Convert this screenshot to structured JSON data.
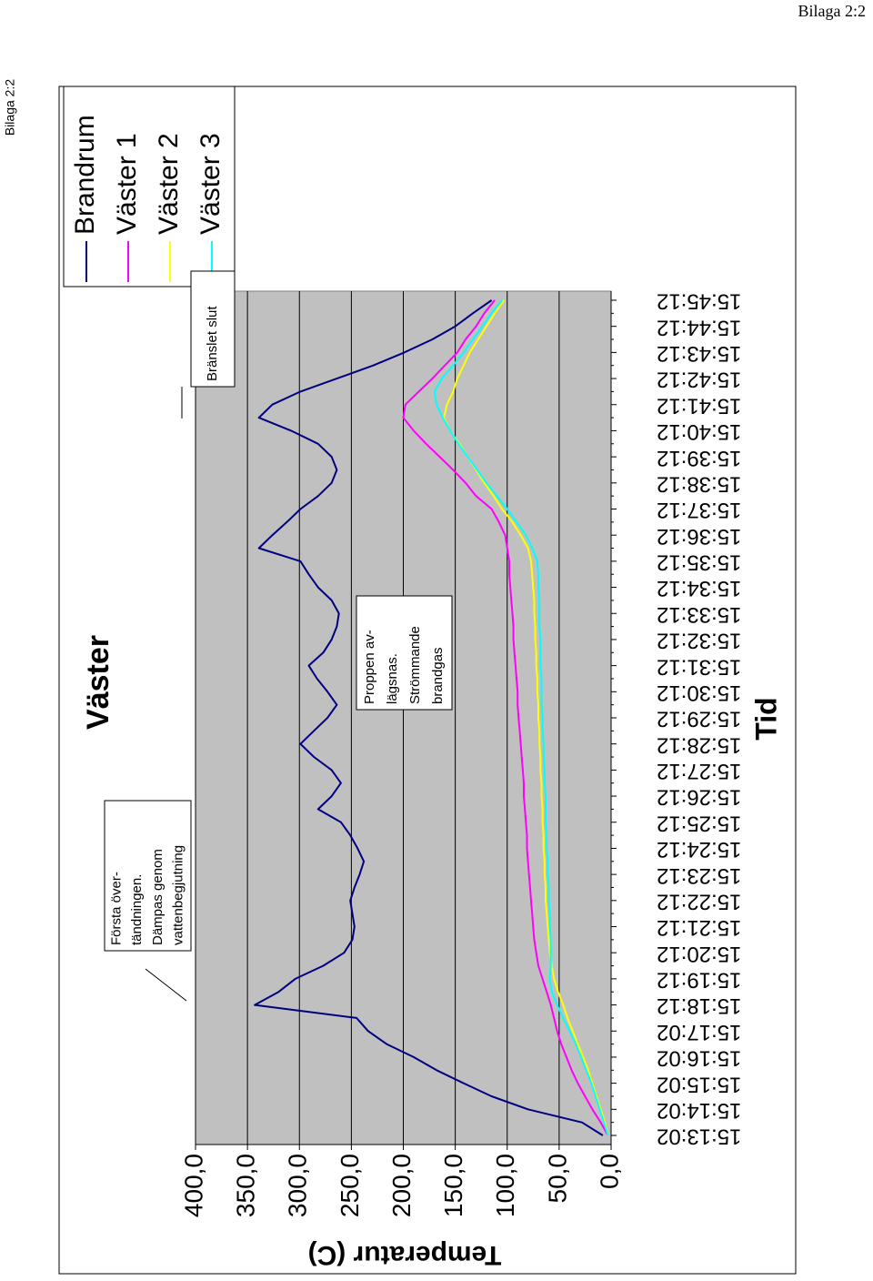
{
  "header": "Bilaga 2:2",
  "side_header": "Bilaga 2:2",
  "chart_data": {
    "type": "line",
    "title": "Väster",
    "x_label": "Tid",
    "y_label": "Temperatur (C)",
    "categories": [
      "15:13:02",
      null,
      "15:14:02",
      null,
      "15:15:02",
      null,
      "15:16:02",
      null,
      "15:17:02",
      null,
      "15:18:12",
      null,
      "15:19:12",
      null,
      "15:20:12",
      null,
      "15:21:12",
      null,
      "15:22:12",
      null,
      "15:23:12",
      null,
      "15:24:12",
      null,
      "15:25:12",
      null,
      "15:26:12",
      null,
      "15:27:12",
      null,
      "15:28:12",
      null,
      "15:29:12",
      null,
      "15:30:12",
      null,
      "15:31:12",
      null,
      "15:32:12",
      null,
      "15:33:12",
      null,
      "15:34:12",
      null,
      "15:35:12",
      null,
      "15:36:12",
      null,
      "15:37:12",
      null,
      "15:38:12",
      null,
      "15:39:12",
      null,
      "15:40:12",
      null,
      "15:41:12",
      null,
      "15:42:12",
      null,
      "15:43:12",
      null,
      "15:44:12",
      null,
      "15:45:12"
    ],
    "series": [
      {
        "name": "Brandrum",
        "color": "#000080",
        "values": [
          8,
          28,
          80,
          115,
          142,
          168,
          190,
          216,
          234,
          245,
          343,
          320,
          304,
          277,
          257,
          249,
          247,
          249,
          251,
          247,
          242,
          238,
          244,
          251,
          260,
          282,
          269,
          260,
          269,
          286,
          299,
          286,
          273,
          264,
          273,
          283,
          291,
          277,
          269,
          264,
          262,
          269,
          282,
          291,
          299,
          339,
          326,
          312,
          299,
          282,
          269,
          264,
          269,
          282,
          308,
          339,
          326,
          299,
          264,
          229,
          199,
          172,
          150,
          133,
          115
        ]
      },
      {
        "name": "Väster 1",
        "color": "#ff00ff",
        "values": [
          3,
          10,
          18,
          25,
          32,
          38,
          43,
          48,
          52,
          55,
          58,
          62,
          66,
          70,
          72,
          74,
          75,
          76,
          77,
          78,
          79,
          80,
          81,
          81,
          82,
          83,
          84,
          84,
          85,
          86,
          87,
          88,
          89,
          90,
          90,
          91,
          92,
          93,
          94,
          94,
          95,
          96,
          97,
          98,
          98,
          100,
          102,
          108,
          115,
          130,
          140,
          152,
          165,
          178,
          190,
          200,
          198,
          185,
          172,
          160,
          148,
          140,
          130,
          122,
          112
        ]
      },
      {
        "name": "Väster 2",
        "color": "#ffff00",
        "values": [
          3,
          6,
          10,
          14,
          18,
          22,
          27,
          32,
          37,
          42,
          46,
          51,
          55,
          57,
          59,
          60,
          61,
          62,
          63,
          63,
          64,
          64,
          65,
          65,
          66,
          66,
          67,
          67,
          68,
          68,
          69,
          69,
          70,
          70,
          71,
          71,
          72,
          72,
          73,
          73,
          74,
          74,
          75,
          76,
          77,
          80,
          87,
          95,
          105,
          113,
          122,
          130,
          138,
          146,
          155,
          161,
          158,
          152,
          148,
          142,
          136,
          128,
          120,
          112,
          103
        ]
      },
      {
        "name": "Väster 3",
        "color": "#00ffff",
        "values": [
          3,
          7,
          11,
          15,
          19,
          24,
          29,
          34,
          40,
          46,
          52,
          57,
          59,
          58,
          58,
          58,
          59,
          59,
          60,
          60,
          61,
          61,
          62,
          62,
          63,
          63,
          63,
          64,
          64,
          65,
          65,
          66,
          66,
          67,
          67,
          67,
          68,
          68,
          68,
          69,
          69,
          69,
          70,
          70,
          71,
          76,
          82,
          91,
          100,
          110,
          120,
          129,
          138,
          147,
          155,
          162,
          168,
          170,
          163,
          152,
          142,
          133,
          124,
          115,
          105
        ]
      }
    ],
    "ylim": [
      0,
      400
    ],
    "yticks": [
      {
        "value": 0,
        "label": "0,0"
      },
      {
        "value": 50,
        "label": "50,0"
      },
      {
        "value": 100,
        "label": "100,0"
      },
      {
        "value": 150,
        "label": "150,0"
      },
      {
        "value": 200,
        "label": "200,0"
      },
      {
        "value": 250,
        "label": "250,0"
      },
      {
        "value": 300,
        "label": "300,0"
      },
      {
        "value": 350,
        "label": "350,0"
      },
      {
        "value": 400,
        "label": "400,0"
      }
    ],
    "grid": true,
    "legend": "right",
    "plot_color": "#c0c0c0",
    "annotations": [
      {
        "lines": [
          "Första över-",
          "tändningen.",
          "Dämpas genom",
          "vattenbegjutning"
        ]
      },
      {
        "lines": [
          "Proppen av-",
          "lägsnas.",
          "Strömmande",
          "brandgas"
        ]
      },
      {
        "lines": [
          "Bränslet slut"
        ]
      }
    ]
  }
}
